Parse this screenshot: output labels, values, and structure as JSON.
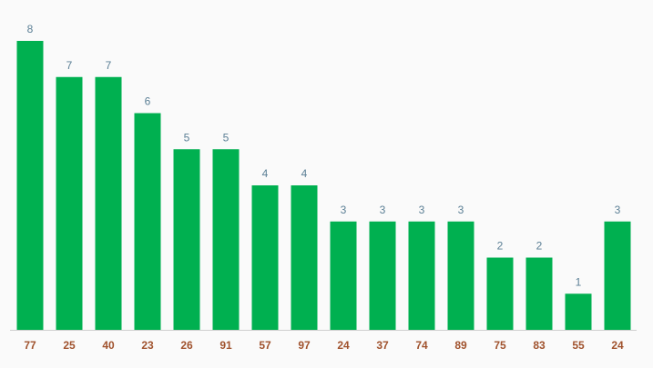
{
  "chart_data": {
    "type": "bar",
    "categories": [
      "77",
      "25",
      "40",
      "23",
      "26",
      "91",
      "57",
      "97",
      "24",
      "37",
      "74",
      "89",
      "75",
      "83",
      "55",
      "24"
    ],
    "values": [
      8,
      7,
      7,
      6,
      5,
      5,
      4,
      4,
      3,
      3,
      3,
      3,
      2,
      2,
      1,
      3
    ],
    "color": "#00b050"
  }
}
